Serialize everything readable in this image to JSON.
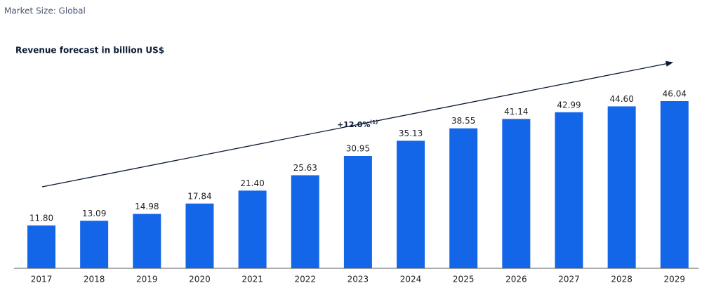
{
  "chart_data": {
    "type": "bar",
    "subtitle": "Market Size: Global",
    "title": "Revenue forecast in billion US$",
    "annotation": {
      "text": "+12.0%",
      "note": "(1)"
    },
    "categories": [
      "2017",
      "2018",
      "2019",
      "2020",
      "2021",
      "2022",
      "2023",
      "2024",
      "2025",
      "2026",
      "2027",
      "2028",
      "2029"
    ],
    "values": [
      11.8,
      13.09,
      14.98,
      17.84,
      21.4,
      25.63,
      30.95,
      35.13,
      38.55,
      41.14,
      42.99,
      44.6,
      46.04
    ],
    "value_labels": [
      "11.80",
      "13.09",
      "14.98",
      "17.84",
      "21.40",
      "25.63",
      "30.95",
      "35.13",
      "38.55",
      "41.14",
      "42.99",
      "44.60",
      "46.04"
    ],
    "color": "#1466e8"
  }
}
